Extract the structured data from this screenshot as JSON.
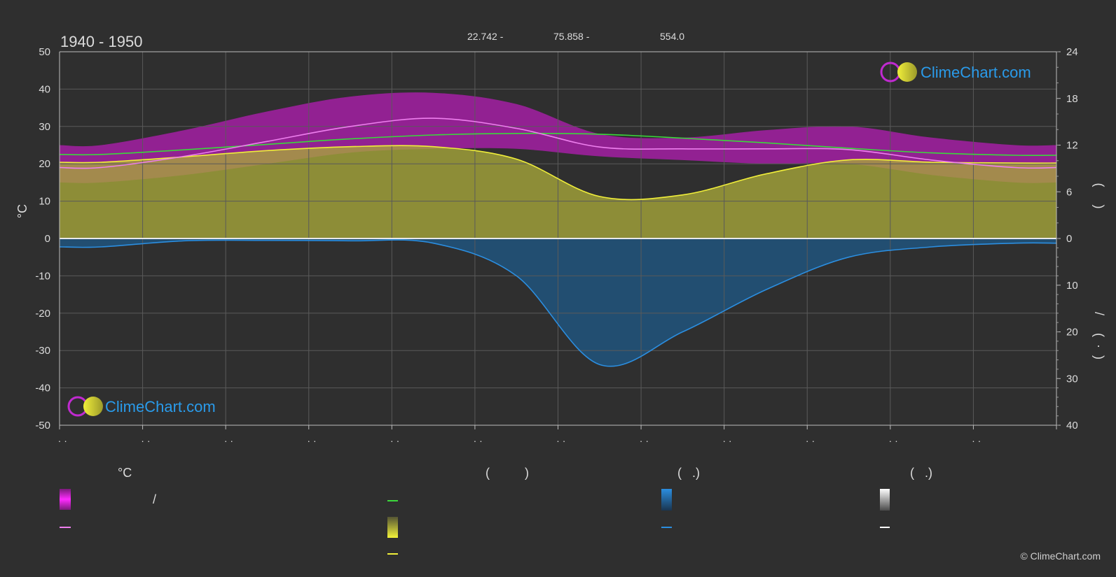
{
  "title": "1940 - 1950",
  "top_labels": {
    "a": "22.742 -",
    "b": "75.858 -",
    "c": "554.0"
  },
  "watermark": "ClimeChart.com",
  "copyright": "© ClimeChart.com",
  "axes": {
    "left_label": "°C",
    "left_ticks": [
      "50",
      "40",
      "30",
      "20",
      "10",
      "0",
      "-10",
      "-20",
      "-30",
      "-40",
      "-50"
    ],
    "right_top_ticks": [
      "24",
      "18",
      "12",
      "6",
      "0"
    ],
    "right_bottom_ticks": [
      "10",
      "20",
      "30",
      "40"
    ],
    "right_upper_label": "(     )",
    "right_lower_label": "/     (  ·  )",
    "month_labels": [
      "· ·",
      "· ·",
      "· ·",
      "· ·",
      "· ·",
      "· ·",
      "· ·",
      "· ·",
      "· ·",
      "· ·",
      "· ·",
      "· ·"
    ]
  },
  "legend": {
    "h_temp": "°C",
    "h_sun": "(          )",
    "h_rain": "(   .)",
    "h_snow": "(   .)",
    "slash": "/"
  },
  "colors": {
    "background": "#2f2f2f",
    "grid": "#5a5a5a",
    "temp_range": "#d01ad0",
    "temp_mean": "#ee7fee",
    "daylight": "#3bd83b",
    "sunshine_fill": "#a8a83a",
    "sunshine_line": "#f0ee3a",
    "rain_fill": "#1f5a88",
    "rain_line": "#2b8ee0",
    "snow": "#ffffff",
    "watermark": "#2a9bea"
  },
  "chart_data": {
    "type": "line",
    "x": [
      "1",
      "2",
      "3",
      "4",
      "5",
      "6",
      "7",
      "8",
      "9",
      "10",
      "11",
      "12"
    ],
    "xlim": [
      0,
      12
    ],
    "ylim_left": [
      -50,
      50
    ],
    "ylim_right_top": [
      0,
      24
    ],
    "ylim_right_bottom": [
      0,
      40
    ],
    "grid": true,
    "series": [
      {
        "key": "temp_mean",
        "axis": "left",
        "values": [
          19,
          22,
          26,
          30,
          32.2,
          29.5,
          24.5,
          24,
          24,
          23.8,
          21,
          19
        ]
      },
      {
        "key": "temp_max",
        "axis": "left",
        "values": [
          25,
          29,
          34,
          38,
          39,
          36,
          28,
          27,
          29,
          30,
          27,
          25
        ]
      },
      {
        "key": "temp_min",
        "axis": "left",
        "values": [
          15,
          17,
          20,
          23,
          24,
          24,
          22,
          21,
          20,
          20,
          17,
          15
        ]
      },
      {
        "key": "daylight",
        "axis": "right_top",
        "values": [
          10.8,
          11.4,
          12.1,
          12.8,
          13.3,
          13.5,
          13.4,
          12.9,
          12.3,
          11.6,
          11.0,
          10.7
        ]
      },
      {
        "key": "sunshine",
        "axis": "right_top",
        "values": [
          9.8,
          10.5,
          11.3,
          11.8,
          11.8,
          10.2,
          5.4,
          5.6,
          8.3,
          10.1,
          9.8,
          9.7
        ]
      },
      {
        "key": "precipitation",
        "axis": "right_bottom",
        "values": [
          1.8,
          0.5,
          0.4,
          0.5,
          1.0,
          8.0,
          27.0,
          20.0,
          11.0,
          4.0,
          1.8,
          1.0
        ]
      }
    ]
  }
}
